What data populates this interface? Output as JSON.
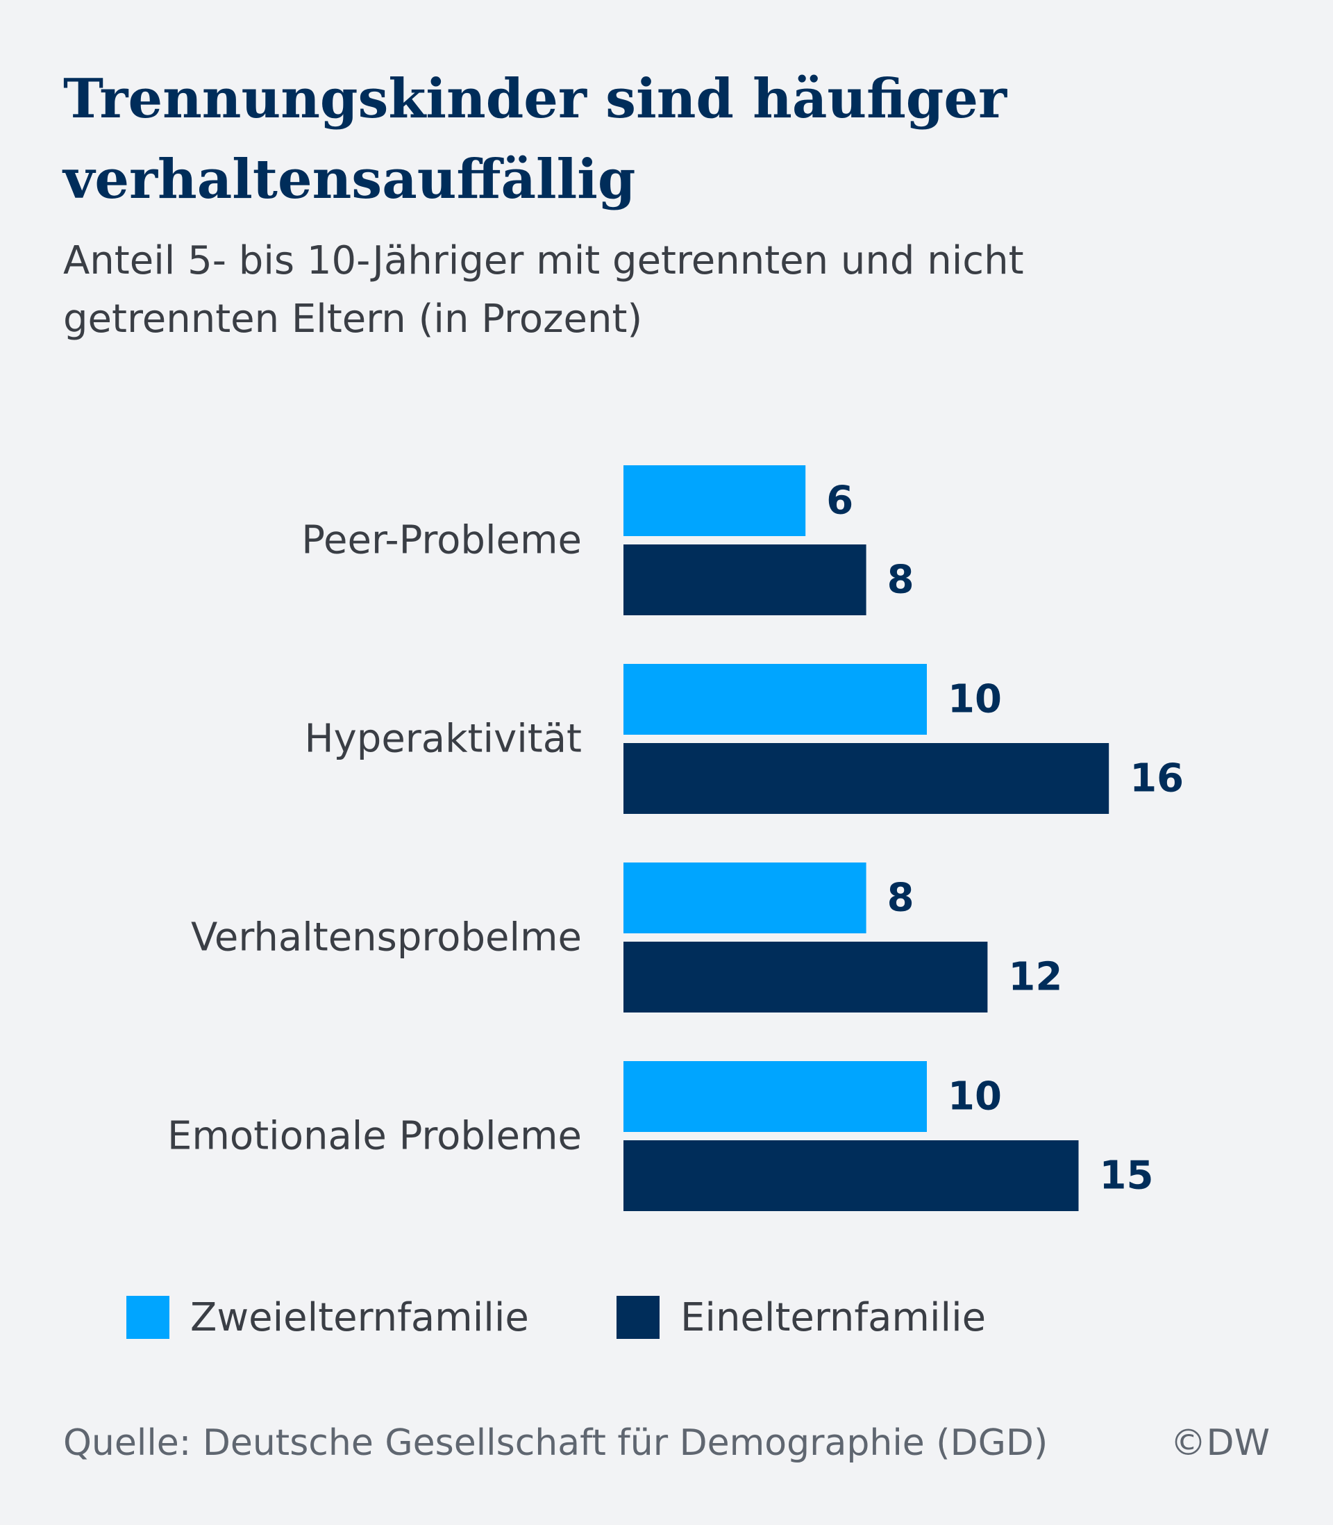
{
  "header": {
    "title": "Trennungskinder sind häufiger verhaltensauffällig",
    "subtitle": "Anteil 5- bis 10-Jähriger mit getrennten und nicht getrennten Eltern (in Prozent)"
  },
  "chart_data": {
    "type": "bar",
    "orientation": "horizontal",
    "title": "Trennungskinder sind häufiger verhaltensauffällig",
    "subtitle": "Anteil 5- bis 10-Jähriger mit getrennten und nicht getrennten Eltern (in Prozent)",
    "categories": [
      "Peer-Probleme",
      "Hyperaktivität",
      "Verhaltensprobelme",
      "Emotionale Probleme"
    ],
    "series": [
      {
        "name": "Zweielternfamilie",
        "values": [
          6,
          10,
          8,
          10
        ],
        "color": "#00a5ff"
      },
      {
        "name": "Einelternfamilie",
        "values": [
          8,
          16,
          12,
          15
        ],
        "color": "#002d5a"
      }
    ],
    "xlim": [
      0,
      18
    ],
    "grid": false,
    "axes_visible": false,
    "data_labels": true,
    "legend_position": "bottom"
  },
  "legend": {
    "items": [
      {
        "label": "Zweielternfamilie",
        "color": "#00a5ff"
      },
      {
        "label": "Einelternfamilie",
        "color": "#002d5a"
      }
    ]
  },
  "footer": {
    "source": "Quelle: Deutsche Gesellschaft für Demographie (DGD)",
    "copyright": "©DW"
  },
  "colors": {
    "background": "#f2f3f5",
    "title": "#002d5a",
    "text": "#3a3e45",
    "label_value": "#002d5a"
  }
}
